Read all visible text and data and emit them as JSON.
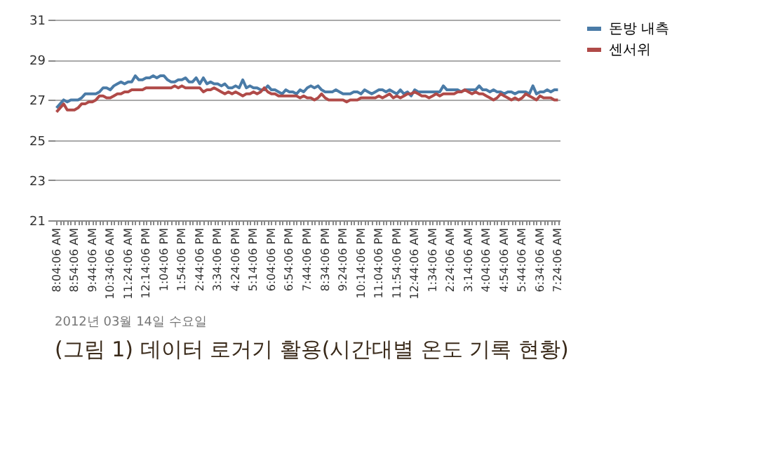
{
  "chart_data": {
    "type": "line",
    "categories": [
      "8:04:06 AM",
      null,
      null,
      null,
      null,
      "8:54:06 AM",
      null,
      null,
      null,
      null,
      "9:44:06 AM",
      null,
      null,
      null,
      null,
      "10:34:06 AM",
      null,
      null,
      null,
      null,
      "11:24:06 AM",
      null,
      null,
      null,
      null,
      "12:14:06 PM",
      null,
      null,
      null,
      null,
      "1:04:06 PM",
      null,
      null,
      null,
      null,
      "1:54:06 PM",
      null,
      null,
      null,
      null,
      "2:44:06 PM",
      null,
      null,
      null,
      null,
      "3:34:06 PM",
      null,
      null,
      null,
      null,
      "4:24:06 PM",
      null,
      null,
      null,
      null,
      "5:14:06 PM",
      null,
      null,
      null,
      null,
      "6:04:06 PM",
      null,
      null,
      null,
      null,
      "6:54:06 PM",
      null,
      null,
      null,
      null,
      "7:44:06 PM",
      null,
      null,
      null,
      null,
      "8:34:06 PM",
      null,
      null,
      null,
      null,
      "9:24:06 PM",
      null,
      null,
      null,
      null,
      "10:14:06 PM",
      null,
      null,
      null,
      null,
      "11:04:06 PM",
      null,
      null,
      null,
      null,
      "11:54:06 PM",
      null,
      null,
      null,
      null,
      "12:44:06 AM",
      null,
      null,
      null,
      null,
      "1:34:06 AM",
      null,
      null,
      null,
      null,
      "2:24:06 AM",
      null,
      null,
      null,
      null,
      "3:14:06 AM",
      null,
      null,
      null,
      null,
      "4:04:06 AM",
      null,
      null,
      null,
      null,
      "4:54:06 AM",
      null,
      null,
      null,
      null,
      "5:44:06 AM",
      null,
      null,
      null,
      null,
      "6:34:06 AM",
      null,
      null,
      null,
      null,
      "7:24:06 AM"
    ],
    "series": [
      {
        "name": "돈방 내측",
        "color": "#4a7ba7",
        "values": [
          26.6,
          26.8,
          27.0,
          26.9,
          27.0,
          27.0,
          27.0,
          27.1,
          27.3,
          27.3,
          27.3,
          27.3,
          27.4,
          27.6,
          27.6,
          27.5,
          27.7,
          27.8,
          27.9,
          27.8,
          27.9,
          27.9,
          28.2,
          28.0,
          28.0,
          28.1,
          28.1,
          28.2,
          28.1,
          28.2,
          28.2,
          28.0,
          27.9,
          27.9,
          28.0,
          28.0,
          28.1,
          27.9,
          27.9,
          28.1,
          27.8,
          28.1,
          27.8,
          27.9,
          27.8,
          27.8,
          27.7,
          27.8,
          27.6,
          27.6,
          27.7,
          27.6,
          28.0,
          27.6,
          27.7,
          27.6,
          27.6,
          27.5,
          27.5,
          27.7,
          27.5,
          27.5,
          27.4,
          27.3,
          27.5,
          27.4,
          27.4,
          27.3,
          27.5,
          27.4,
          27.6,
          27.7,
          27.6,
          27.7,
          27.5,
          27.4,
          27.4,
          27.4,
          27.5,
          27.4,
          27.3,
          27.3,
          27.3,
          27.4,
          27.4,
          27.3,
          27.5,
          27.4,
          27.3,
          27.4,
          27.5,
          27.5,
          27.4,
          27.5,
          27.4,
          27.3,
          27.5,
          27.3,
          27.4,
          27.2,
          27.5,
          27.4,
          27.4,
          27.4,
          27.4,
          27.4,
          27.4,
          27.4,
          27.7,
          27.5,
          27.5,
          27.5,
          27.5,
          27.4,
          27.5,
          27.5,
          27.5,
          27.5,
          27.7,
          27.5,
          27.5,
          27.4,
          27.5,
          27.4,
          27.4,
          27.3,
          27.4,
          27.4,
          27.3,
          27.4,
          27.4,
          27.4,
          27.3,
          27.7,
          27.3,
          27.4,
          27.4,
          27.5,
          27.4,
          27.5,
          27.5
        ]
      },
      {
        "name": "센서위",
        "color": "#b04a48",
        "values": [
          26.4,
          26.6,
          26.8,
          26.5,
          26.5,
          26.5,
          26.6,
          26.8,
          26.8,
          26.9,
          26.9,
          27.0,
          27.2,
          27.2,
          27.1,
          27.1,
          27.2,
          27.3,
          27.3,
          27.4,
          27.4,
          27.5,
          27.5,
          27.5,
          27.5,
          27.6,
          27.6,
          27.6,
          27.6,
          27.6,
          27.6,
          27.6,
          27.6,
          27.7,
          27.6,
          27.7,
          27.6,
          27.6,
          27.6,
          27.6,
          27.6,
          27.4,
          27.5,
          27.5,
          27.6,
          27.5,
          27.4,
          27.3,
          27.4,
          27.3,
          27.4,
          27.3,
          27.2,
          27.3,
          27.3,
          27.4,
          27.3,
          27.4,
          27.6,
          27.4,
          27.3,
          27.3,
          27.2,
          27.2,
          27.2,
          27.2,
          27.2,
          27.2,
          27.1,
          27.2,
          27.1,
          27.1,
          27.0,
          27.1,
          27.3,
          27.1,
          27.0,
          27.0,
          27.0,
          27.0,
          27.0,
          26.9,
          27.0,
          27.0,
          27.0,
          27.1,
          27.1,
          27.1,
          27.1,
          27.1,
          27.2,
          27.1,
          27.2,
          27.3,
          27.1,
          27.2,
          27.1,
          27.2,
          27.3,
          27.3,
          27.4,
          27.3,
          27.2,
          27.2,
          27.1,
          27.2,
          27.3,
          27.2,
          27.3,
          27.3,
          27.3,
          27.3,
          27.4,
          27.4,
          27.5,
          27.4,
          27.3,
          27.4,
          27.3,
          27.3,
          27.2,
          27.1,
          27.0,
          27.1,
          27.3,
          27.2,
          27.1,
          27.0,
          27.1,
          27.0,
          27.1,
          27.3,
          27.2,
          27.1,
          27.0,
          27.2,
          27.1,
          27.1,
          27.1,
          27.0,
          27.0
        ]
      }
    ],
    "ylim": [
      21,
      31
    ],
    "yticks": [
      21,
      23,
      25,
      27,
      29,
      31
    ],
    "grid": "y",
    "legend": "right",
    "line_style": "solid",
    "annotations": [
      "2012년 03월 14일 수요일",
      "(그림 1) 데이터 로거기 활용(시간대별 온도 기록 현황)"
    ]
  }
}
